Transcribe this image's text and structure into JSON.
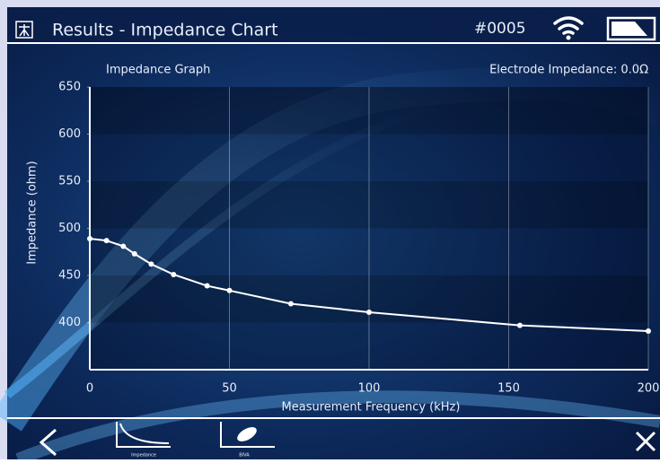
{
  "header": {
    "title": "Results - Impedance Chart",
    "device_id": "#0005"
  },
  "chart_data": {
    "type": "line",
    "title": "Impedance Graph",
    "annotation": "Electrode Impedance: 0.0Ω",
    "x_label": "Measurement Frequency (kHz)",
    "y_label": "Impedance (ohm)",
    "x": [
      0,
      6,
      12,
      16,
      22,
      30,
      42,
      50,
      72,
      100,
      154,
      200
    ],
    "values": [
      489,
      487,
      481,
      473,
      462,
      451,
      439,
      434,
      420,
      411,
      397,
      391
    ],
    "color": "#ffffff",
    "xlim": [
      0,
      200
    ],
    "ylim": [
      350,
      650
    ],
    "xticks": [
      0,
      50,
      100,
      150,
      200
    ],
    "yticks": [
      400,
      450,
      500,
      550,
      600,
      650
    ],
    "grid": true
  },
  "footer": {
    "buttons": [
      "Impedance",
      "BIVA"
    ]
  }
}
